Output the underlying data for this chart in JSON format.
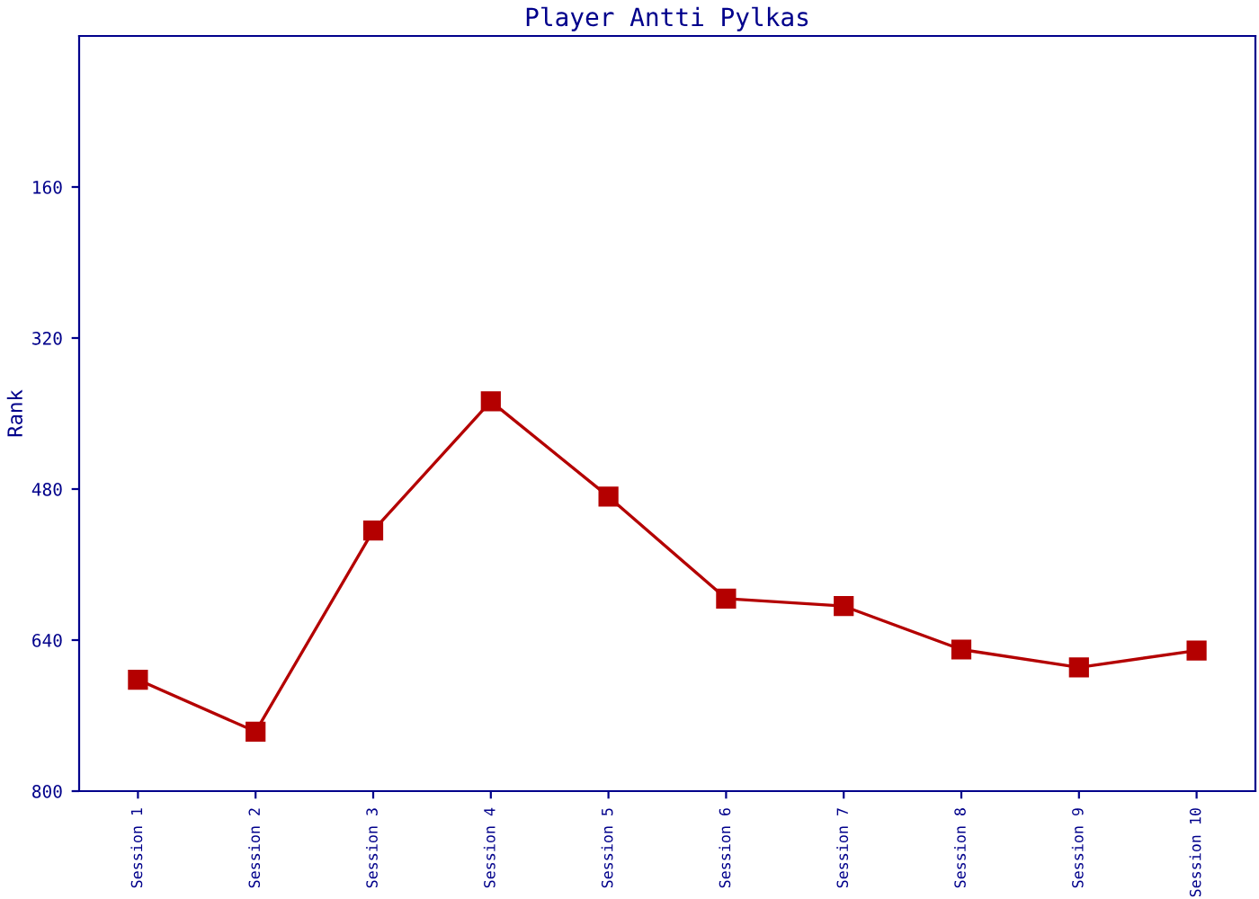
{
  "chart_data": {
    "type": "line",
    "title": "Player Antti Pylkas",
    "ylabel": "Rank",
    "categories": [
      "Session 1",
      "Session 2",
      "Session 3",
      "Session 4",
      "Session 5",
      "Session 6",
      "Session 7",
      "Session 8",
      "Session 9",
      "Session 10"
    ],
    "series": [
      {
        "color": "#b40000",
        "values": [
          682,
          737,
          524,
          387,
          488,
          596,
          604,
          650,
          669,
          651
        ]
      }
    ],
    "ylim": [
      800,
      0
    ],
    "yticks": [
      160,
      320,
      480,
      640,
      800
    ],
    "marker": "square",
    "line_style": "solid",
    "grid": false,
    "legend": false
  }
}
